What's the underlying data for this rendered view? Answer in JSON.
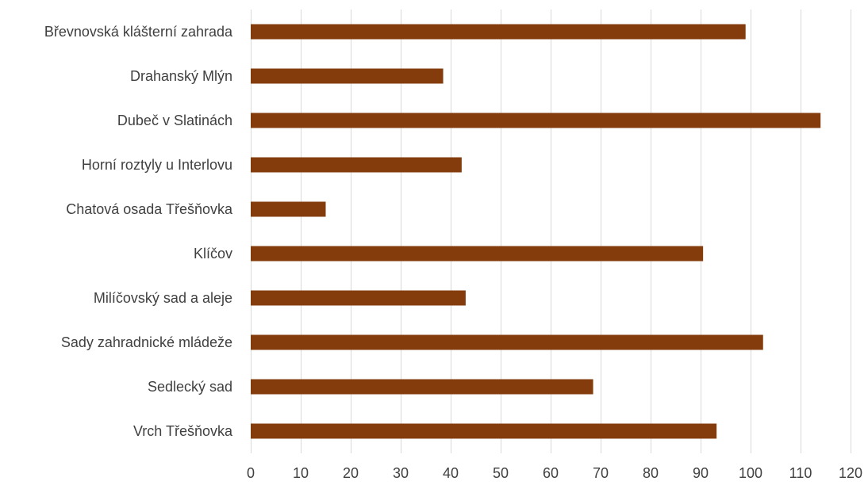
{
  "chart_data": {
    "type": "bar",
    "orientation": "horizontal",
    "title": "",
    "xlabel": "",
    "ylabel": "",
    "categories": [
      "Břevnovská klášterní zahrada",
      "Drahanský Mlýn",
      "Dubeč v Slatinách",
      "Horní roztyly u Interlovu",
      "Chatová osada Třešňovka",
      "Klíčov",
      "Milíčovský sad a aleje",
      "Sady zahradnické mládeže",
      "Sedlecký sad",
      "Vrch Třešňovka"
    ],
    "values": [
      99,
      38.5,
      114,
      42.2,
      15,
      90.5,
      43,
      102.5,
      68.5,
      93.2
    ],
    "xlim": [
      0,
      120
    ],
    "x_ticks": [
      "0",
      "10",
      "20",
      "30",
      "40",
      "50",
      "60",
      "70",
      "80",
      "90",
      "100",
      "110",
      "120"
    ],
    "grid": "vertical",
    "legend": "none",
    "colors": {
      "bar": "#843c0c",
      "grid": "#d9d9d9",
      "text": "#404040"
    }
  }
}
